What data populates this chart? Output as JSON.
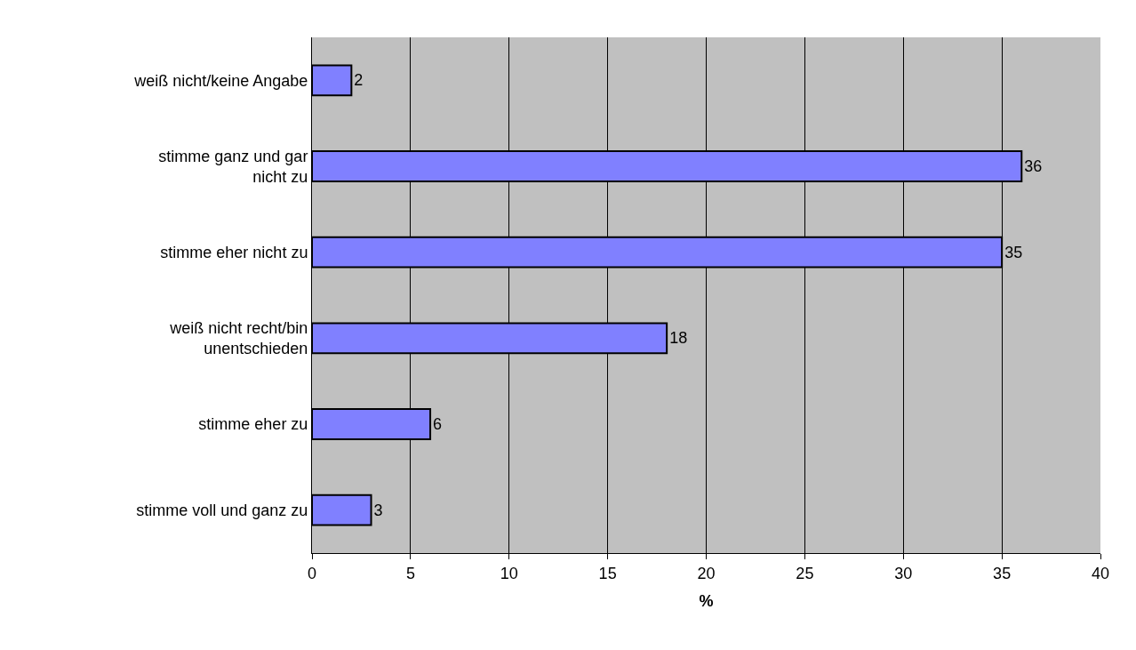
{
  "chart_data": {
    "type": "bar",
    "orientation": "horizontal",
    "xlabel": "%",
    "categories": [
      "weiß nicht/keine Angabe",
      "stimme ganz und gar nicht zu",
      "stimme eher nicht zu",
      "weiß nicht recht/bin unentschieden",
      "stimme eher zu",
      "stimme voll und ganz zu"
    ],
    "values": [
      2,
      36,
      35,
      18,
      6,
      3
    ],
    "color": "#8080ff",
    "xlim": [
      0,
      40
    ],
    "xticks": [
      0,
      5,
      10,
      15,
      20,
      25,
      30,
      35,
      40
    ],
    "grid": "x",
    "data_labels": true,
    "legend": false
  }
}
